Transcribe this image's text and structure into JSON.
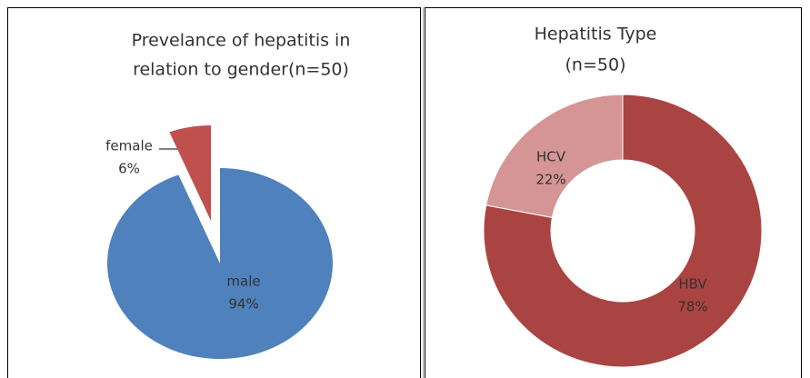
{
  "chart_data": [
    {
      "type": "pie",
      "title": [
        "Prevelance of hepatitis in",
        "relation to gender(n=50)"
      ],
      "categories": [
        "male",
        "female"
      ],
      "values": [
        94,
        6
      ],
      "value_labels": [
        "94%",
        "6%"
      ],
      "colors": [
        "#4f81bd",
        "#c0504d"
      ]
    },
    {
      "type": "donut",
      "title": [
        "Hepatitis Type",
        "(n=50)"
      ],
      "categories": [
        "HBV",
        "HCV"
      ],
      "values": [
        78,
        22
      ],
      "value_labels": [
        "78%",
        "22%"
      ],
      "colors": [
        "#aa4442",
        "#d59594"
      ]
    }
  ]
}
